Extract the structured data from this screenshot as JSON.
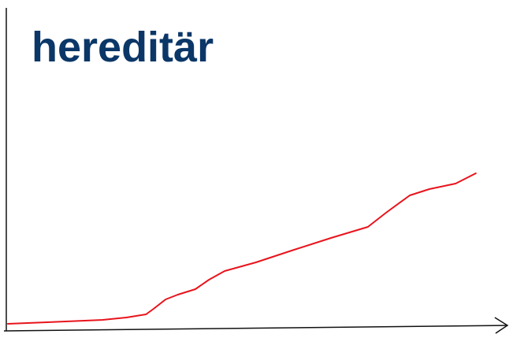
{
  "chart_data": {
    "type": "line",
    "title": "hereditär",
    "x": [
      0.3,
      8.1,
      19.1,
      23.8,
      27.7,
      29.2,
      31.6,
      34.0,
      37.5,
      40.2,
      43.3,
      49.5,
      56.6,
      64.4,
      71.7,
      75.3,
      80.0,
      83.9,
      89.1,
      93.1
    ],
    "series": [
      {
        "color": "#e8141c",
        "values": [
          1,
          1.5,
          2.25,
          3,
          4,
          5.75,
          8.75,
          10.25,
          12,
          15,
          17.75,
          20.5,
          24.25,
          28.25,
          31.75,
          36.25,
          41.75,
          43.75,
          45.5,
          48.75
        ]
      }
    ],
    "xlim": [
      0,
      100
    ],
    "ylim": [
      0,
      100
    ]
  }
}
